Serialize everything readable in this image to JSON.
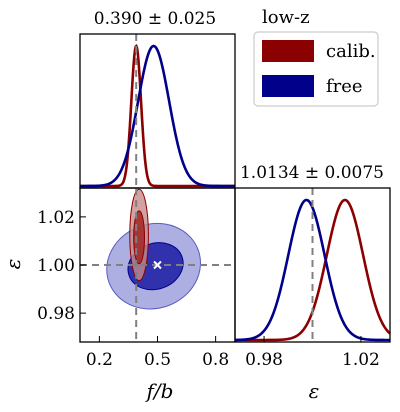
{
  "figure": {
    "legend_title": "low-z",
    "legend": [
      {
        "label": "calib.",
        "color": "#8b0000"
      },
      {
        "label": "free",
        "color": "#00008b"
      }
    ],
    "colors": {
      "calib": "#8b0000",
      "free": "#00008b",
      "truth": "#808080",
      "calib_fill_outer": "#c98a8a",
      "calib_fill_inner": "#a52a2a",
      "free_fill_outer": "#9fa0dc",
      "free_fill_inner": "#2a2aaa"
    }
  },
  "chart_data": [
    {
      "id": "marginal-fb",
      "type": "line",
      "title": "0.390 ± 0.025",
      "x_range": [
        0.1,
        0.9
      ],
      "truth_line": 0.39,
      "series": [
        {
          "name": "calib.",
          "mean": 0.39,
          "sigma": 0.025
        },
        {
          "name": "free",
          "mean": 0.48,
          "sigma": 0.08
        }
      ]
    },
    {
      "id": "joint-fb-eps",
      "type": "scatter",
      "xlabel": "f/b",
      "ylabel": "ε",
      "xlim": [
        0.1,
        0.9
      ],
      "ylim": [
        0.968,
        1.032
      ],
      "x_ticks": [
        "0.2",
        "0.5",
        "0.8"
      ],
      "x_tick_values": [
        0.2,
        0.5,
        0.8
      ],
      "y_ticks": [
        "1.02",
        "1.00",
        "0.98"
      ],
      "y_tick_values": [
        1.02,
        1.0,
        0.98
      ],
      "truth_point": {
        "x": 0.39,
        "y": 1.0
      },
      "marker": {
        "x": 0.5,
        "y": 1.0
      },
      "contours": [
        {
          "name": "free",
          "level": "2sigma",
          "cx": 0.48,
          "cy": 0.9995,
          "rx": 0.245,
          "ry": 0.0175,
          "angle_deg": -20
        },
        {
          "name": "free",
          "level": "1sigma",
          "cx": 0.49,
          "cy": 0.9995,
          "rx": 0.145,
          "ry": 0.0095,
          "angle_deg": -20
        },
        {
          "name": "calib.",
          "level": "2sigma",
          "cx": 0.405,
          "cy": 1.0125,
          "rx": 0.048,
          "ry": 0.019,
          "angle_deg": 0
        },
        {
          "name": "calib.",
          "level": "1sigma",
          "cx": 0.405,
          "cy": 1.0115,
          "rx": 0.028,
          "ry": 0.011,
          "angle_deg": 0
        }
      ]
    },
    {
      "id": "marginal-eps",
      "type": "line",
      "title": "1.0134 ± 0.0075",
      "xlabel": "ε",
      "x_range": [
        0.968,
        1.032
      ],
      "x_ticks": [
        "0.98",
        "1.02"
      ],
      "x_tick_values": [
        0.98,
        1.02
      ],
      "truth_line": 1.0,
      "series": [
        {
          "name": "calib.",
          "mean": 1.0134,
          "sigma": 0.0075
        },
        {
          "name": "free",
          "mean": 0.9975,
          "sigma": 0.0075
        }
      ]
    }
  ]
}
